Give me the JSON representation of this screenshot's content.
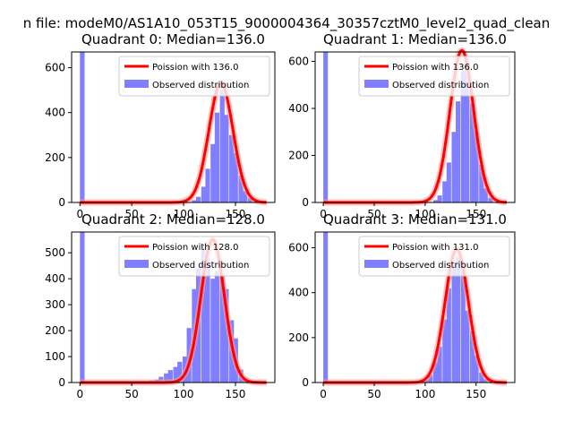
{
  "figure_title": "n file: modeM0/AS1A10_053T15_9000004364_30357cztM0_level2_quad_clean",
  "chart_data": [
    {
      "type": "histogram",
      "title": "Quadrant 0: Median=136.0",
      "median": 136.0,
      "xlim": [
        -8,
        188
      ],
      "ylim": [
        0,
        670
      ],
      "xticks": [
        0,
        50,
        100,
        150
      ],
      "yticks": [
        0,
        200,
        400,
        600
      ],
      "bin_width": 4.5,
      "bins": [
        [
          0,
          670
        ],
        [
          108,
          10
        ],
        [
          112,
          25
        ],
        [
          117,
          70
        ],
        [
          121,
          150
        ],
        [
          126,
          260
        ],
        [
          130,
          400
        ],
        [
          135,
          500
        ],
        [
          139,
          390
        ],
        [
          144,
          300
        ],
        [
          148,
          220
        ],
        [
          153,
          120
        ],
        [
          157,
          50
        ],
        [
          162,
          20
        ]
      ],
      "legend": [
        "Poission with 136.0",
        "Observed distribution"
      ]
    },
    {
      "type": "histogram",
      "title": "Quadrant 1: Median=136.0",
      "median": 136.0,
      "xlim": [
        -8,
        188
      ],
      "ylim": [
        0,
        640
      ],
      "xticks": [
        0,
        50,
        100,
        150
      ],
      "yticks": [
        0,
        200,
        400,
        600
      ],
      "bin_width": 4.5,
      "bins": [
        [
          0,
          640
        ],
        [
          108,
          10
        ],
        [
          112,
          30
        ],
        [
          117,
          90
        ],
        [
          121,
          170
        ],
        [
          126,
          300
        ],
        [
          130,
          430
        ],
        [
          135,
          560
        ],
        [
          139,
          610
        ],
        [
          144,
          420
        ],
        [
          148,
          300
        ],
        [
          153,
          160
        ],
        [
          157,
          60
        ],
        [
          162,
          20
        ]
      ],
      "legend": [
        "Poission with 136.0",
        "Observed distribution"
      ]
    },
    {
      "type": "histogram",
      "title": "Quadrant 2: Median=128.0",
      "median": 128.0,
      "xlim": [
        -8,
        188
      ],
      "ylim": [
        0,
        580
      ],
      "xticks": [
        0,
        50,
        100,
        150
      ],
      "yticks": [
        0,
        100,
        200,
        300,
        400,
        500
      ],
      "bin_width": 4.5,
      "bins": [
        [
          0,
          580
        ],
        [
          58,
          3
        ],
        [
          63,
          5
        ],
        [
          67,
          8
        ],
        [
          72,
          12
        ],
        [
          76,
          22
        ],
        [
          81,
          35
        ],
        [
          85,
          48
        ],
        [
          90,
          60
        ],
        [
          94,
          80
        ],
        [
          99,
          100
        ],
        [
          103,
          210
        ],
        [
          108,
          360
        ],
        [
          112,
          440
        ],
        [
          117,
          520
        ],
        [
          121,
          480
        ],
        [
          126,
          400
        ],
        [
          130,
          430
        ],
        [
          135,
          420
        ],
        [
          139,
          360
        ],
        [
          144,
          240
        ],
        [
          148,
          170
        ],
        [
          153,
          50
        ],
        [
          157,
          12
        ]
      ],
      "legend": [
        "Poission with 128.0",
        "Observed distribution"
      ]
    },
    {
      "type": "histogram",
      "title": "Quadrant 3: Median=131.0",
      "median": 131.0,
      "xlim": [
        -8,
        188
      ],
      "ylim": [
        0,
        670
      ],
      "xticks": [
        0,
        50,
        100,
        150
      ],
      "yticks": [
        0,
        200,
        400,
        600
      ],
      "bin_width": 4.5,
      "bins": [
        [
          0,
          670
        ],
        [
          94,
          5
        ],
        [
          99,
          12
        ],
        [
          103,
          35
        ],
        [
          108,
          90
        ],
        [
          112,
          160
        ],
        [
          117,
          280
        ],
        [
          121,
          420
        ],
        [
          126,
          520
        ],
        [
          130,
          560
        ],
        [
          135,
          500
        ],
        [
          139,
          320
        ],
        [
          144,
          230
        ],
        [
          148,
          120
        ],
        [
          153,
          45
        ],
        [
          157,
          15
        ]
      ],
      "legend": [
        "Poission with 131.0",
        "Observed distribution"
      ]
    }
  ],
  "colors": {
    "hist": "#7f7fff",
    "curve": "#ff0000",
    "curve_glow": "#ff9a9a"
  }
}
